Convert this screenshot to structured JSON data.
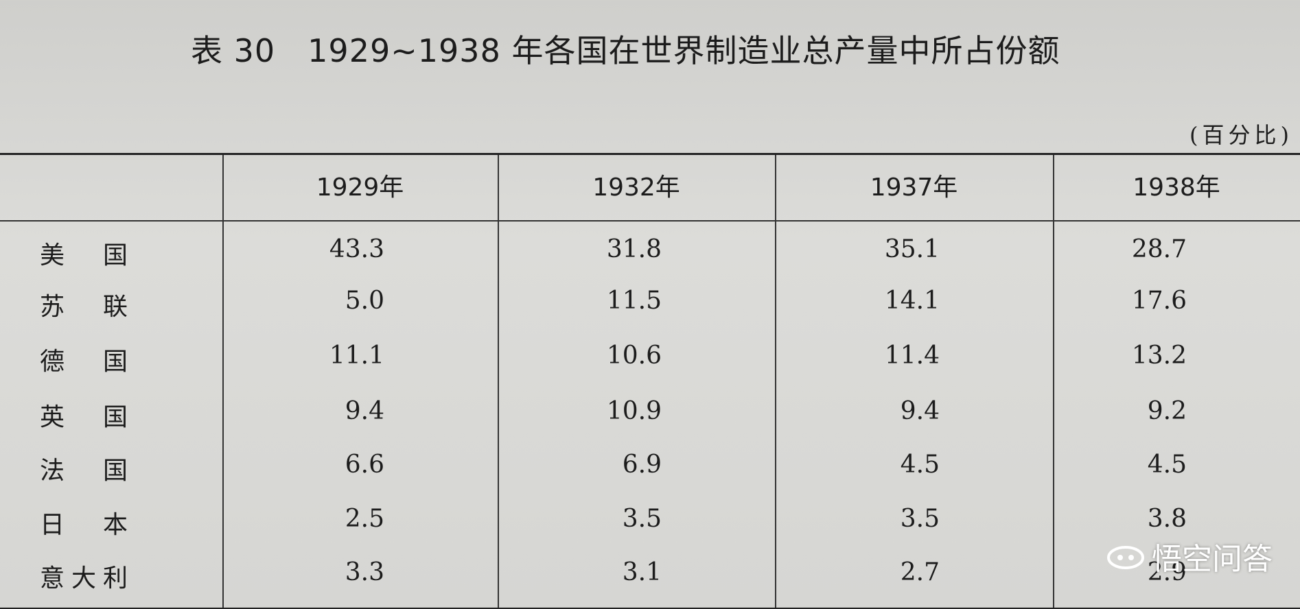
{
  "header": {
    "title": "表 30　1929~1938 年各国在世界制造业总产量中所占份额",
    "unit": "(百分比)"
  },
  "table": {
    "columns": [
      "1929年",
      "1932年",
      "1937年",
      "1938年"
    ],
    "rows": [
      {
        "label": "美国",
        "cells": [
          "43.3",
          "31.8",
          "35.1",
          "28.7"
        ]
      },
      {
        "label": "苏联",
        "cells": [
          "5.0",
          "11.5",
          "14.1",
          "17.6"
        ]
      },
      {
        "label": "德国",
        "cells": [
          "11.1",
          "10.6",
          "11.4",
          "13.2"
        ]
      },
      {
        "label": "英国",
        "cells": [
          "9.4",
          "10.9",
          "9.4",
          "9.2"
        ]
      },
      {
        "label": "法国",
        "cells": [
          "6.6",
          "6.9",
          "4.5",
          "4.5"
        ]
      },
      {
        "label": "日本",
        "cells": [
          "2.5",
          "3.5",
          "3.5",
          "3.8"
        ]
      },
      {
        "label": "意大利",
        "cells": [
          "3.3",
          "3.1",
          "2.7",
          "2.9"
        ]
      }
    ]
  },
  "watermark": "悟空问答"
}
